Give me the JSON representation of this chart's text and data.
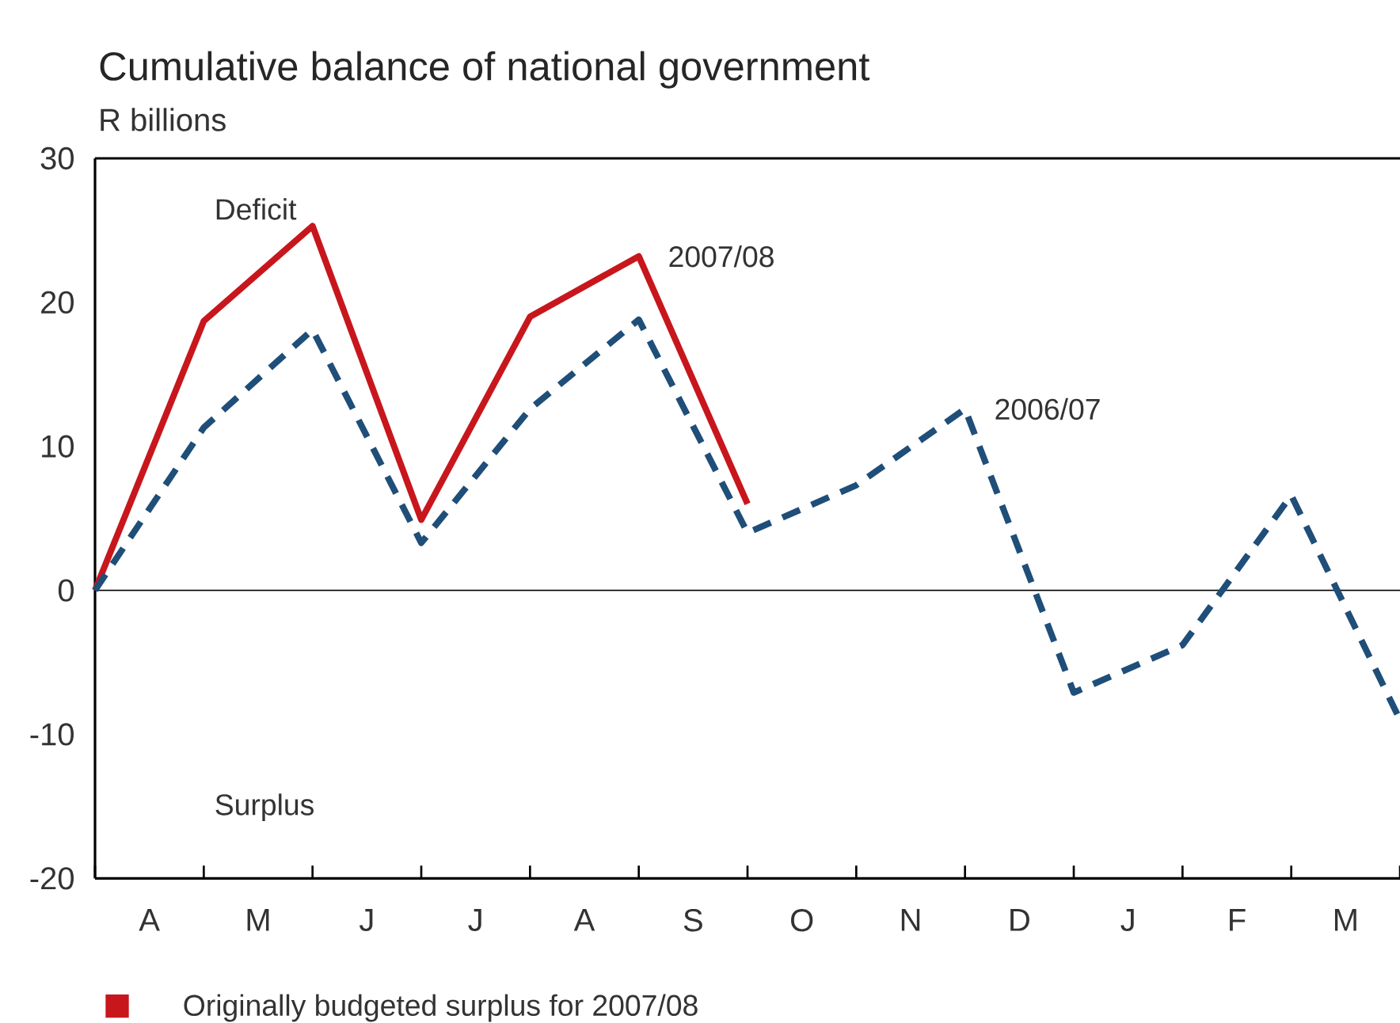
{
  "chart_data": {
    "type": "line",
    "title": "Cumulative balance of national government",
    "ylabel": "R billions",
    "categories": [
      null,
      null,
      null,
      null,
      null,
      null,
      null,
      null,
      null,
      null,
      null,
      null,
      null
    ],
    "series": [
      {
        "name": "2007/08",
        "color": "#c8161d",
        "line_style": "solid",
        "values": [
          0,
          18.7,
          25.3,
          4.9,
          19.0,
          23.2,
          6.0,
          null,
          null,
          null,
          null,
          null,
          null
        ]
      },
      {
        "name": "2006/07",
        "color": "#1f4e79",
        "line_style": "dashed",
        "values": [
          0,
          11.3,
          18.1,
          3.3,
          12.6,
          18.8,
          4.0,
          7.3,
          12.6,
          -7.1,
          -3.8,
          6.6,
          -9.0
        ]
      }
    ],
    "ylim": [
      -20,
      30
    ],
    "yticks": [
      -20,
      -10,
      0,
      10,
      20,
      30
    ],
    "ref_lines": [
      {
        "axis": "y",
        "value": 0,
        "color": "#000000"
      }
    ],
    "grid": false,
    "marker": "none",
    "annotations": [
      "Deficit",
      "Surplus",
      "Originally budgeted surplus for 2007/08",
      "A",
      "M",
      "J",
      "J",
      "A",
      "S",
      "O",
      "N",
      "D",
      "J",
      "F",
      "M"
    ]
  }
}
